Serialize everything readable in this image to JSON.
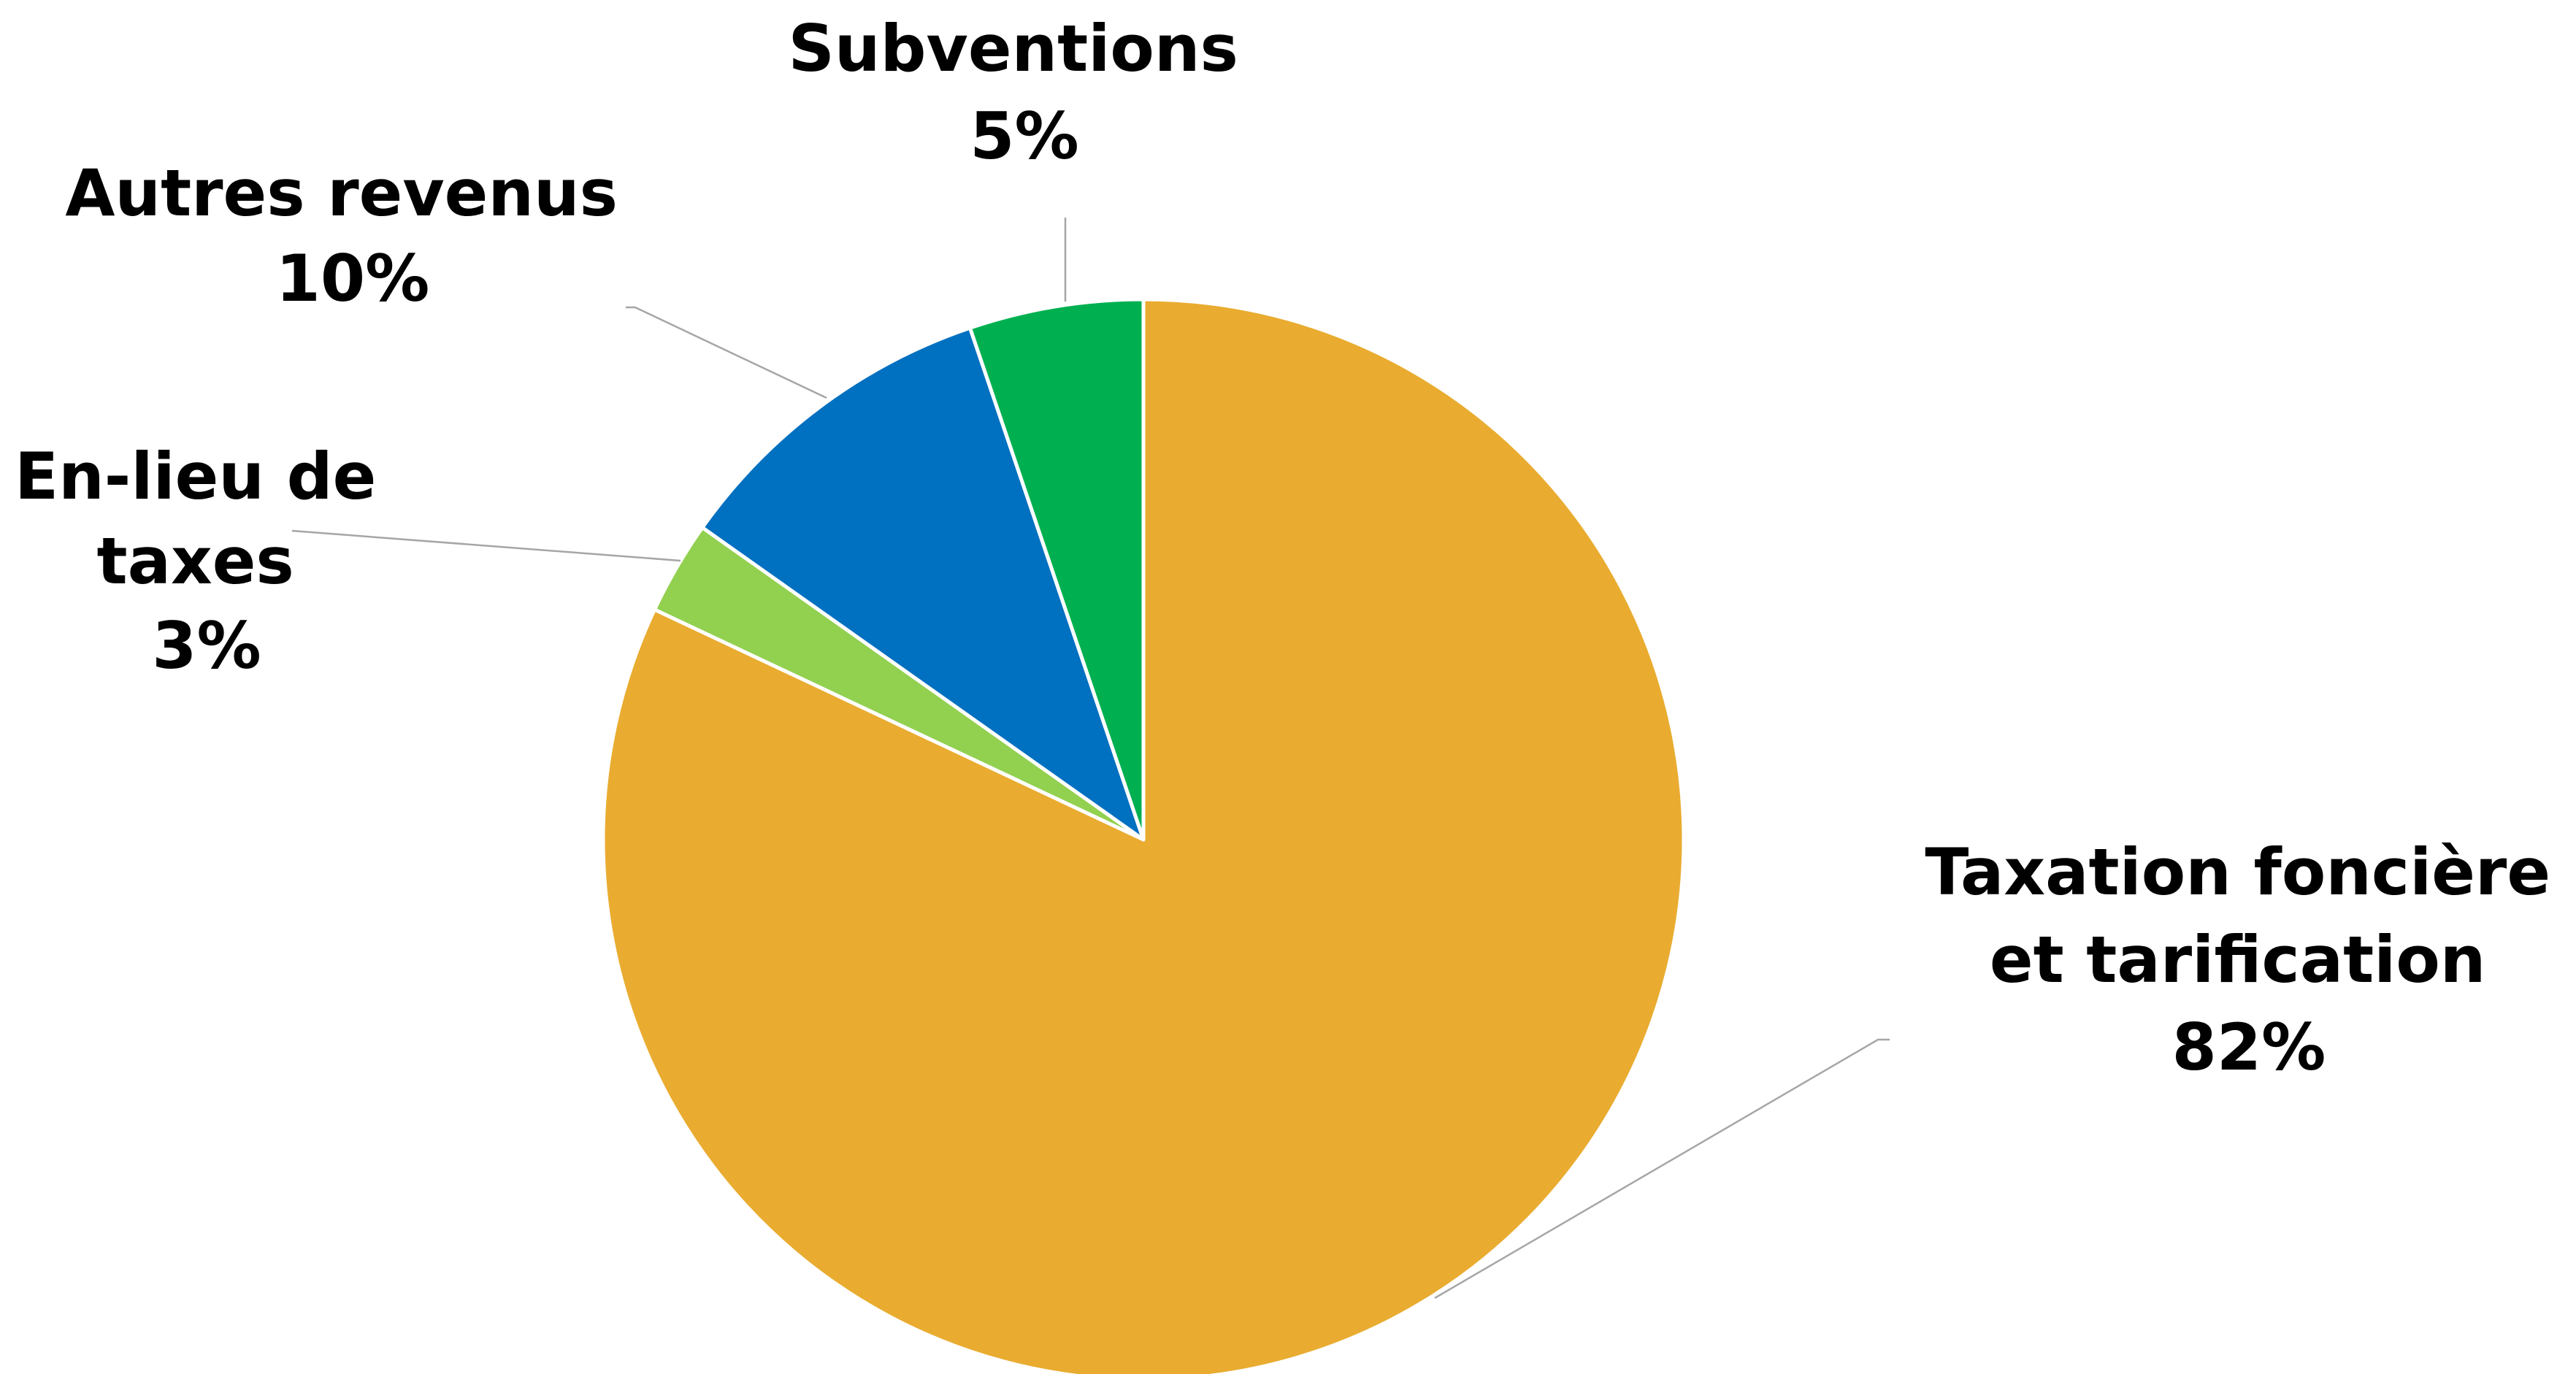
{
  "chart_data": {
    "type": "pie",
    "title": "",
    "start_angle_deg": 0,
    "direction": "clockwise",
    "slices": [
      {
        "label_lines": [
          "Taxation foncière",
          "et tarification"
        ],
        "percent_label": "82%",
        "value": 82,
        "color": "#E9AC30"
      },
      {
        "label_lines": [
          "En-lieu de",
          "taxes"
        ],
        "percent_label": "3%",
        "value": 2.8,
        "color": "#92D050"
      },
      {
        "label_lines": [
          "Autres revenus"
        ],
        "percent_label": "10%",
        "value": 10,
        "color": "#0070C0"
      },
      {
        "label_lines": [
          "Subventions"
        ],
        "percent_label": "5%",
        "value": 5.2,
        "color": "#00B050"
      }
    ],
    "legend": "none",
    "data_labels": "outside with leader lines"
  }
}
